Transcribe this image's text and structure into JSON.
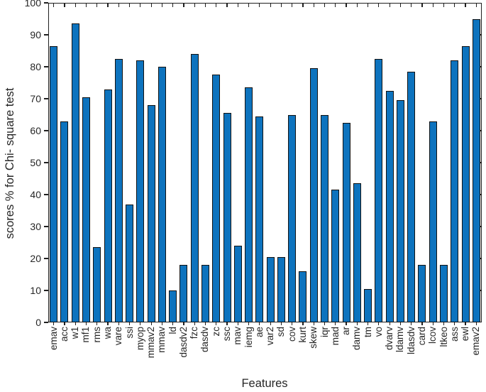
{
  "figure": {
    "background": "#ffffff",
    "text_color": "#262626",
    "axis_color": "#1f1f1f"
  },
  "chart_data": {
    "type": "bar",
    "title": "",
    "xlabel": "Features",
    "ylabel": "scores % for Chi- square test",
    "ylim": [
      0,
      100
    ],
    "yticks": [
      0,
      10,
      20,
      30,
      40,
      50,
      60,
      70,
      80,
      90,
      100
    ],
    "grid": false,
    "legend": null,
    "bar_color": "#0d73be",
    "bar_edge_color": "#121212",
    "categories": [
      "emav",
      "acc",
      "w1",
      "mf1",
      "rms",
      "wa",
      "vare",
      "ssi",
      "myop",
      "mmav2",
      "mmav",
      "ld",
      "dasdv2",
      "fzc",
      "dasdv",
      "zc",
      "ssc",
      "mav",
      "iemg",
      "ae",
      "var2",
      "sd",
      "cov",
      "kurt",
      "skew",
      "iqr",
      "mad",
      "ar",
      "damv",
      "tm",
      "vo",
      "dvarv",
      "ldamv",
      "ldasdv",
      "card",
      "lcov",
      "ltkeo",
      "ass",
      "ewl",
      "emav2"
    ],
    "values": [
      86.5,
      63,
      93.5,
      70.5,
      23.5,
      73,
      82.5,
      37,
      82,
      68,
      80,
      10,
      18,
      84,
      18,
      77.5,
      65.5,
      24,
      73.5,
      64.5,
      20.5,
      20.5,
      65,
      16,
      79.5,
      65,
      41.5,
      62.5,
      43.5,
      10.5,
      82.5,
      72.5,
      69.5,
      78.5,
      18,
      63,
      18,
      82,
      86.5,
      95
    ]
  }
}
